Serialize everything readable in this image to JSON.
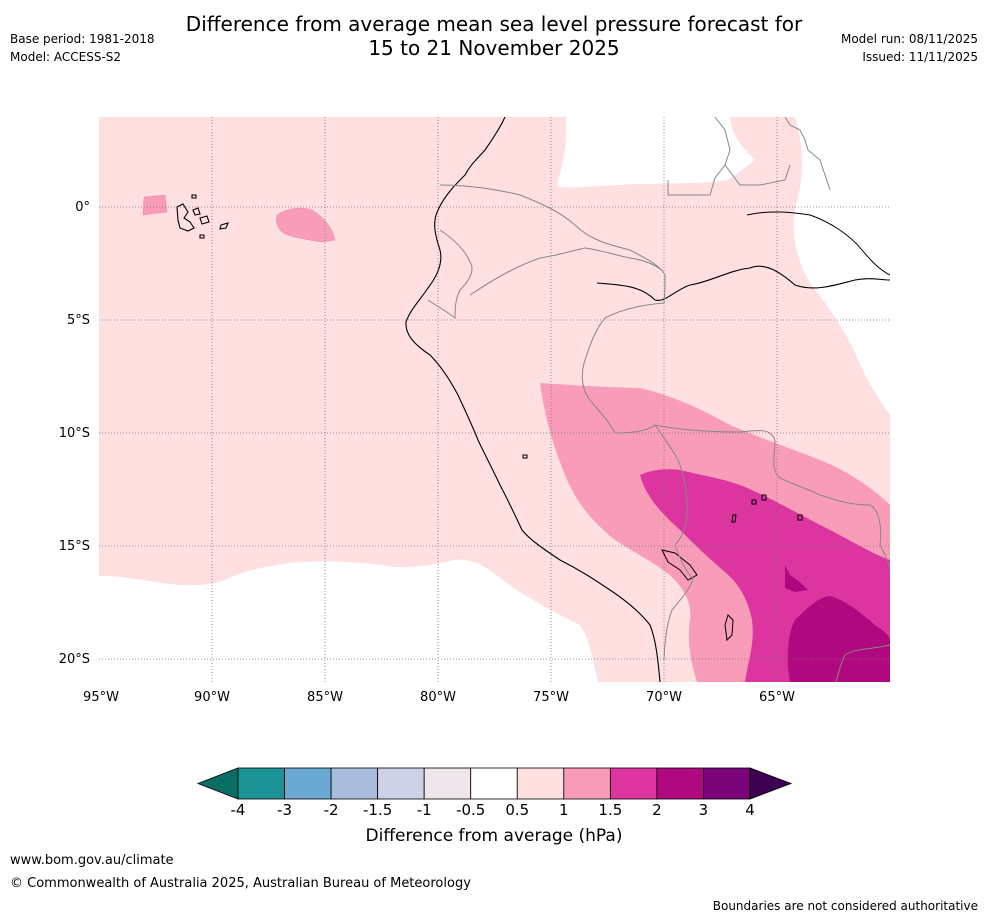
{
  "title": {
    "line1": "Difference from average mean sea level pressure forecast for",
    "line2": "15 to 21 November 2025"
  },
  "meta": {
    "base_period": "Base period: 1981-2018",
    "model": "Model: ACCESS-S2",
    "model_run": "Model run: 08/11/2025",
    "issued": "Issued: 11/11/2025"
  },
  "map": {
    "lat_labels": [
      "0°",
      "5°S",
      "10°S",
      "15°S",
      "20°S"
    ],
    "lon_labels": [
      "95°W",
      "90°W",
      "85°W",
      "80°W",
      "75°W",
      "70°W",
      "65°W"
    ]
  },
  "colorbar": {
    "ticks": [
      "-4",
      "-3",
      "-2",
      "-1.5",
      "-1",
      "-0.5",
      "0.5",
      "1",
      "1.5",
      "2",
      "3",
      "4"
    ],
    "colors": [
      "#0b6e64",
      "#1a9296",
      "#6aaad2",
      "#a9bcdc",
      "#ced2e6",
      "#ede6ea",
      "#ffffff",
      "#fde0df",
      "#f89cb8",
      "#dc35a0",
      "#b0087e",
      "#7a0478",
      "#3d0050"
    ],
    "label": "Difference from average (hPa)"
  },
  "footer": {
    "url": "www.bom.gov.au/climate",
    "copyright": "© Commonwealth of Australia 2025, Australian Bureau of Meteorology",
    "note": "Boundaries are not considered authoritative"
  }
}
